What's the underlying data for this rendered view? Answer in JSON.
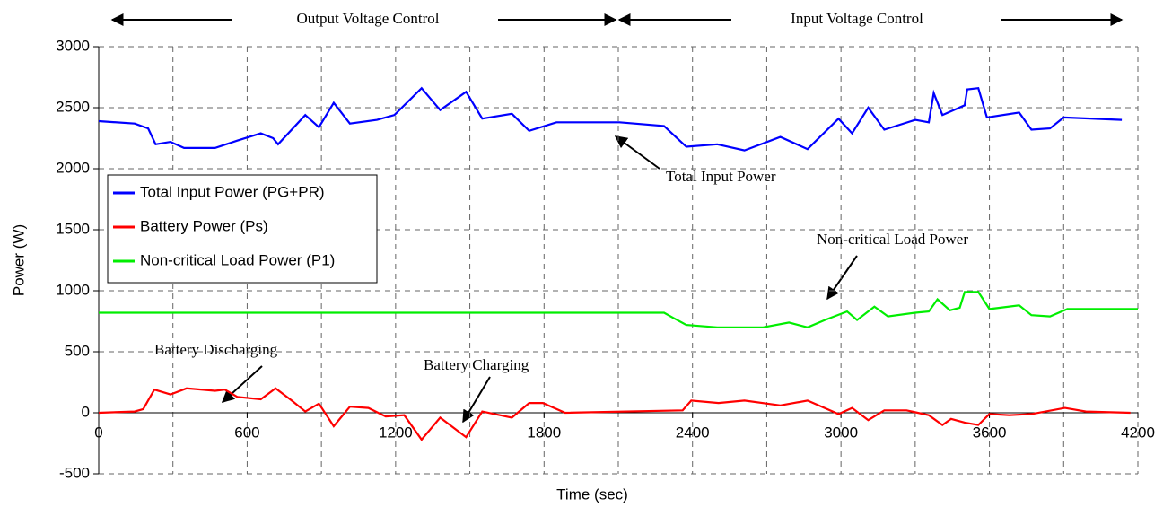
{
  "chart_data": {
    "type": "line",
    "xlabel": "Time (sec)",
    "ylabel": "Power (W)",
    "xlim": [
      0,
      4200
    ],
    "ylim": [
      -500,
      3000
    ],
    "xticks": [
      0,
      600,
      1200,
      1800,
      2400,
      3000,
      3600,
      4200
    ],
    "xminorticks": [
      300,
      900,
      1500,
      2100,
      2700,
      3300,
      3900
    ],
    "yticks": [
      -500,
      0,
      500,
      1000,
      1500,
      2000,
      2500,
      3000
    ],
    "grid": true,
    "legend": "upper left",
    "annotations": [
      "Output Voltage Control",
      "Input Voltage Control",
      "Total Input Power",
      "Non-critical Load Power",
      "Battery Discharging",
      "Battery Charging"
    ],
    "series": [
      {
        "name": "Total Input Power (PG+PR)",
        "color": "#0000ff",
        "x": [
          0,
          145,
          200,
          230,
          290,
          345,
          470,
          560,
          655,
          705,
          725,
          835,
          890,
          950,
          1015,
          1125,
          1195,
          1305,
          1380,
          1485,
          1550,
          1670,
          1740,
          1850,
          2105,
          2285,
          2375,
          2500,
          2610,
          2755,
          2865,
          2990,
          3045,
          3110,
          3175,
          3300,
          3355,
          3375,
          3410,
          3500,
          3510,
          3555,
          3590,
          3720,
          3770,
          3845,
          3900,
          4135
        ],
        "values": [
          2390,
          2370,
          2330,
          2200,
          2220,
          2170,
          2170,
          2230,
          2290,
          2250,
          2200,
          2440,
          2340,
          2540,
          2370,
          2400,
          2440,
          2660,
          2480,
          2630,
          2410,
          2450,
          2310,
          2380,
          2380,
          2350,
          2180,
          2200,
          2150,
          2260,
          2160,
          2410,
          2290,
          2500,
          2320,
          2400,
          2380,
          2620,
          2440,
          2520,
          2650,
          2660,
          2420,
          2460,
          2320,
          2330,
          2420,
          2400
        ]
      },
      {
        "name": "Battery Power (Ps)",
        "color": "#ff0000",
        "x": [
          0,
          145,
          180,
          225,
          290,
          355,
          470,
          510,
          560,
          655,
          715,
          780,
          835,
          890,
          950,
          1015,
          1090,
          1160,
          1235,
          1305,
          1380,
          1485,
          1550,
          1670,
          1740,
          1795,
          1885,
          2360,
          2395,
          2505,
          2610,
          2755,
          2865,
          2990,
          3045,
          3110,
          3175,
          3265,
          3355,
          3410,
          3445,
          3500,
          3555,
          3600,
          3680,
          3770,
          3905,
          3990,
          4170
        ],
        "values": [
          0,
          10,
          30,
          190,
          150,
          200,
          180,
          190,
          130,
          110,
          200,
          100,
          10,
          75,
          -110,
          50,
          40,
          -30,
          -20,
          -220,
          -40,
          -200,
          10,
          -40,
          80,
          80,
          0,
          20,
          100,
          80,
          100,
          60,
          100,
          -10,
          40,
          -60,
          20,
          20,
          -20,
          -100,
          -50,
          -80,
          -100,
          -10,
          -20,
          -10,
          40,
          10,
          0
        ]
      },
      {
        "name": "Non-critical Load Power (P1)",
        "color": "#00ee00",
        "x": [
          0,
          2285,
          2320,
          2375,
          2500,
          2685,
          2790,
          2865,
          2935,
          3025,
          3065,
          3135,
          3190,
          3300,
          3355,
          3390,
          3440,
          3480,
          3500,
          3555,
          3600,
          3720,
          3770,
          3845,
          3915,
          4200
        ],
        "values": [
          820,
          820,
          780,
          720,
          700,
          700,
          740,
          700,
          760,
          830,
          760,
          870,
          790,
          820,
          830,
          930,
          840,
          860,
          990,
          990,
          850,
          880,
          800,
          790,
          850,
          850
        ]
      }
    ]
  }
}
